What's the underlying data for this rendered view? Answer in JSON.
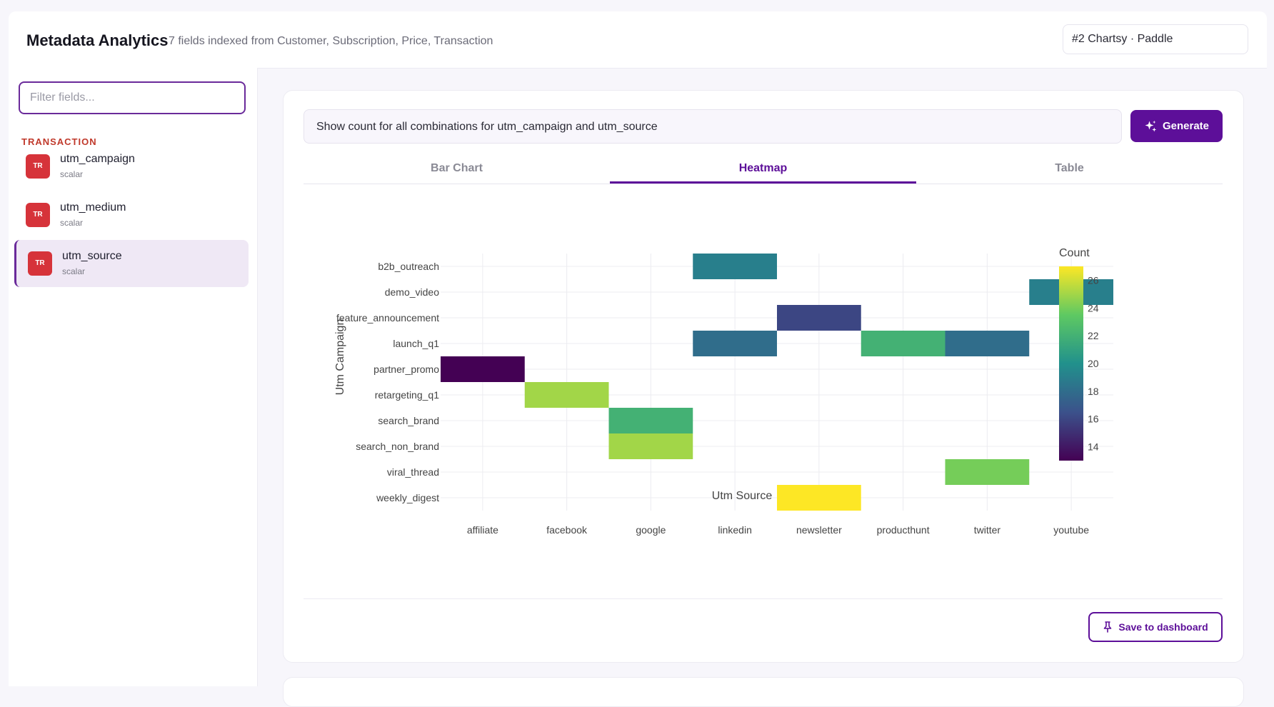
{
  "header": {
    "title": "Metadata Analytics",
    "subtitle": "7 fields indexed from Customer, Subscription, Price, Transaction",
    "workspace": "#2 Chartsy · Paddle"
  },
  "sidebar": {
    "filter_placeholder": "Filter fields...",
    "group_label": "TRANSACTION",
    "items": [
      {
        "badge": "TR",
        "name": "utm_campaign",
        "type": "scalar",
        "active": false
      },
      {
        "badge": "TR",
        "name": "utm_medium",
        "type": "scalar",
        "active": false
      },
      {
        "badge": "TR",
        "name": "utm_source",
        "type": "scalar",
        "active": true
      }
    ]
  },
  "main": {
    "prompt": "Show count for all combinations for utm_campaign and utm_source",
    "generate_label": "Generate",
    "tabs": [
      {
        "label": "Bar Chart",
        "active": false
      },
      {
        "label": "Heatmap",
        "active": true
      },
      {
        "label": "Table",
        "active": false
      }
    ],
    "save_label": "Save to dashboard"
  },
  "colors": {
    "accent": "#5d0f99",
    "badge": "#d6333a",
    "group_label": "#c0392b"
  },
  "chart_data": {
    "type": "heatmap",
    "xlabel": "Utm Source",
    "ylabel": "Utm Campaign",
    "x": [
      "affiliate",
      "facebook",
      "google",
      "linkedin",
      "newsletter",
      "producthunt",
      "twitter",
      "youtube"
    ],
    "y": [
      "b2b_outreach",
      "demo_video",
      "feature_announcement",
      "launch_q1",
      "partner_promo",
      "retargeting_q1",
      "search_brand",
      "search_non_brand",
      "viral_thread",
      "weekly_digest"
    ],
    "cells": [
      {
        "x": "linkedin",
        "y": "b2b_outreach",
        "value": 19
      },
      {
        "x": "youtube",
        "y": "demo_video",
        "value": 19
      },
      {
        "x": "newsletter",
        "y": "feature_announcement",
        "value": 16
      },
      {
        "x": "linkedin",
        "y": "launch_q1",
        "value": 18
      },
      {
        "x": "producthunt",
        "y": "launch_q1",
        "value": 22
      },
      {
        "x": "twitter",
        "y": "launch_q1",
        "value": 18
      },
      {
        "x": "affiliate",
        "y": "partner_promo",
        "value": 13
      },
      {
        "x": "facebook",
        "y": "retargeting_q1",
        "value": 25
      },
      {
        "x": "google",
        "y": "search_brand",
        "value": 22
      },
      {
        "x": "google",
        "y": "search_non_brand",
        "value": 25
      },
      {
        "x": "twitter",
        "y": "viral_thread",
        "value": 24
      },
      {
        "x": "newsletter",
        "y": "weekly_digest",
        "value": 27
      }
    ],
    "colorscale": "viridis",
    "zlim": [
      13,
      27
    ],
    "colorbar_title": "Count",
    "colorbar_ticks": [
      14,
      16,
      18,
      20,
      22,
      24,
      26
    ],
    "grid": true,
    "legend_position": "right"
  }
}
